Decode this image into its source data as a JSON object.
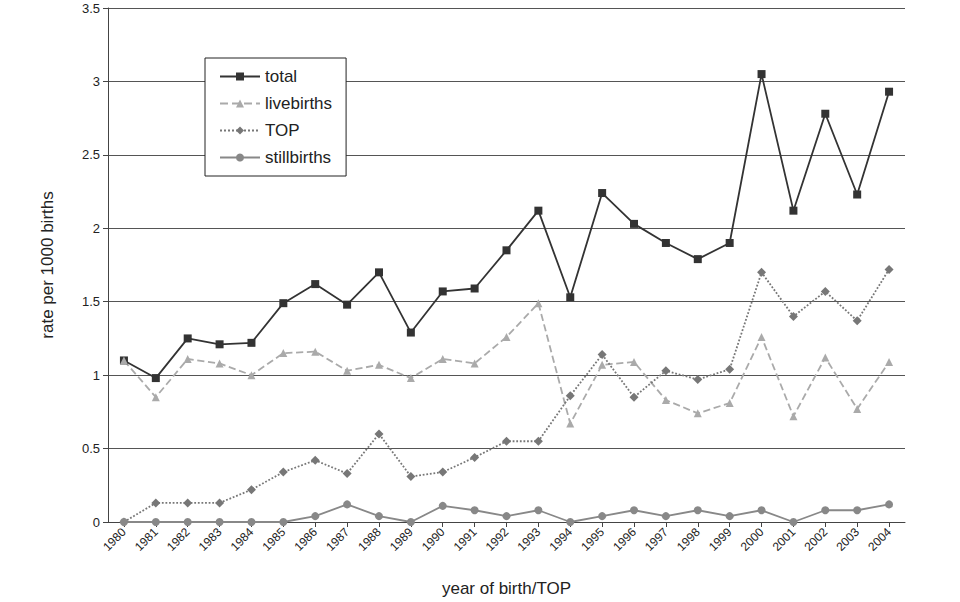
{
  "chart_data": {
    "type": "line",
    "x_label": "year of birth/TOP",
    "y_label": "rate per 1000 births",
    "categories": [
      "1980",
      "1981",
      "1982",
      "1983",
      "1984",
      "1985",
      "1986",
      "1987",
      "1988",
      "1989",
      "1990",
      "1991",
      "1992",
      "1993",
      "1994",
      "1995",
      "1996",
      "1997",
      "1998",
      "1999",
      "2000",
      "2001",
      "2002",
      "2003",
      "2004"
    ],
    "series": [
      {
        "name": "total",
        "color": "#333333",
        "marker": "square",
        "line_style": "solid",
        "values": [
          1.1,
          0.98,
          1.25,
          1.21,
          1.22,
          1.49,
          1.62,
          1.48,
          1.7,
          1.29,
          1.57,
          1.59,
          1.85,
          2.12,
          1.53,
          2.24,
          2.03,
          1.9,
          1.79,
          1.9,
          3.05,
          2.12,
          2.78,
          2.23,
          2.93
        ]
      },
      {
        "name": "livebirths",
        "color": "#aaaaaa",
        "marker": "triangle",
        "line_style": "dashed",
        "values": [
          1.1,
          0.85,
          1.11,
          1.08,
          1.0,
          1.15,
          1.16,
          1.03,
          1.07,
          0.98,
          1.11,
          1.08,
          1.26,
          1.49,
          0.67,
          1.07,
          1.09,
          0.83,
          0.74,
          0.81,
          1.26,
          0.72,
          1.12,
          0.77,
          1.09
        ]
      },
      {
        "name": "TOP",
        "color": "#777777",
        "marker": "diamond",
        "line_style": "dotted",
        "values": [
          0,
          0.13,
          0.13,
          0.13,
          0.22,
          0.34,
          0.42,
          0.33,
          0.6,
          0.31,
          0.34,
          0.44,
          0.55,
          0.55,
          0.86,
          1.14,
          0.85,
          1.03,
          0.97,
          1.04,
          1.7,
          1.4,
          1.57,
          1.37,
          1.72
        ]
      },
      {
        "name": "stillbirths",
        "color": "#888888",
        "marker": "circle",
        "line_style": "solid",
        "values": [
          0,
          0,
          0,
          0,
          0,
          0,
          0.04,
          0.12,
          0.04,
          0,
          0.11,
          0.08,
          0.04,
          0.08,
          0,
          0.04,
          0.08,
          0.04,
          0.08,
          0.04,
          0.08,
          0,
          0.08,
          0.08,
          0.12
        ]
      }
    ],
    "ylim": [
      0,
      3.5
    ],
    "yticks": [
      0,
      0.5,
      1,
      1.5,
      2,
      2.5,
      3,
      3.5
    ],
    "grid": true,
    "legend": "upper left"
  }
}
